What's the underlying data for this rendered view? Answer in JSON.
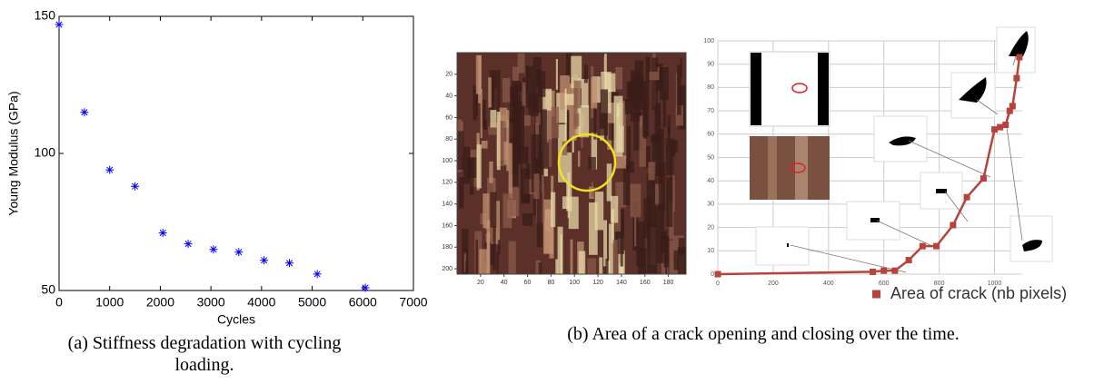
{
  "chart_data": [
    {
      "type": "scatter",
      "xlabel": "Cycles",
      "ylabel": "Young Modulus (GPa)",
      "x": [
        0,
        500,
        1000,
        1500,
        2050,
        2550,
        3050,
        3550,
        4050,
        4550,
        5100,
        6050
      ],
      "values": [
        147,
        115,
        94,
        88,
        71,
        67,
        65,
        64,
        61,
        60,
        56,
        51
      ],
      "color": "#0000ff",
      "xlim": [
        0,
        7000
      ],
      "ylim": [
        50,
        150
      ],
      "xticks": [
        0,
        1000,
        2000,
        3000,
        4000,
        5000,
        6000,
        7000
      ],
      "yticks": [
        50,
        100,
        150
      ]
    },
    {
      "type": "image",
      "xlim": [
        0,
        195
      ],
      "ylim": [
        205,
        0
      ],
      "xticks": [
        20,
        40,
        60,
        80,
        100,
        120,
        140,
        160,
        180
      ],
      "yticks": [
        20,
        40,
        60,
        80,
        100,
        120,
        140,
        160,
        180,
        200
      ]
    },
    {
      "type": "line",
      "xlim": [
        0,
        1100
      ],
      "ylim": [
        0,
        100
      ],
      "xticks": [
        0,
        200,
        400,
        600,
        800,
        1000
      ],
      "yticks": [
        0,
        10,
        20,
        30,
        40,
        50,
        60,
        70,
        80,
        90,
        100
      ],
      "grid": true,
      "x": [
        0,
        560,
        600,
        640,
        690,
        740,
        790,
        850,
        900,
        960,
        1000,
        1020,
        1040,
        1055,
        1065,
        1080,
        1090
      ],
      "series": [
        {
          "name": "Area of crack (nb pixels)",
          "color": "#b5443c",
          "values": [
            0,
            1,
            1.5,
            1.5,
            6,
            12,
            12,
            21,
            33,
            41,
            62,
            63,
            64,
            70,
            72,
            84,
            93
          ]
        }
      ]
    }
  ],
  "figure_captions": [
    "(a) Stiffness degradation with cycling loading.",
    "(b) Area of a crack opening and closing over the time."
  ]
}
